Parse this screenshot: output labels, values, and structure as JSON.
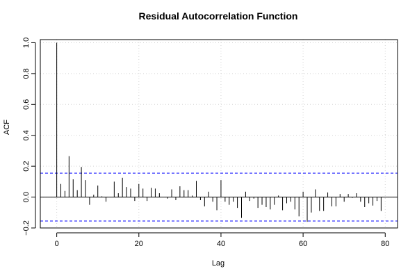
{
  "chart_data": {
    "type": "bar",
    "title": "Residual Autocorrelation Function",
    "xlabel": "Lag",
    "ylabel": "ACF",
    "xlim": [
      -4,
      83
    ],
    "ylim": [
      -0.2,
      1.02
    ],
    "x_ticks": [
      0,
      20,
      40,
      60,
      80
    ],
    "x_tick_labels": [
      "0",
      "20",
      "40",
      "60",
      "80"
    ],
    "y_ticks": [
      -0.2,
      0,
      0.2,
      0.4,
      0.6,
      0.8,
      1.0
    ],
    "y_tick_labels": [
      "−0.2",
      "0.0",
      "0.2",
      "0.4",
      "0.6",
      "0.8",
      "1.0"
    ],
    "grid": true,
    "confidence_bounds": [
      0.155,
      -0.155
    ],
    "colors": {
      "bars": "#000000",
      "bounds": "#0000ff",
      "grid": "#d3d3d3"
    },
    "lags": [
      0,
      1,
      2,
      3,
      4,
      5,
      6,
      7,
      8,
      9,
      10,
      11,
      12,
      13,
      14,
      15,
      16,
      17,
      18,
      19,
      20,
      21,
      22,
      23,
      24,
      25,
      26,
      27,
      28,
      29,
      30,
      31,
      32,
      33,
      34,
      35,
      36,
      37,
      38,
      39,
      40,
      41,
      42,
      43,
      44,
      45,
      46,
      47,
      48,
      49,
      50,
      51,
      52,
      53,
      54,
      55,
      56,
      57,
      58,
      59,
      60,
      61,
      62,
      63,
      64,
      65,
      66,
      67,
      68,
      69,
      70,
      71,
      72,
      73,
      74,
      75,
      76,
      77,
      78,
      79
    ],
    "values": [
      1.0,
      0.085,
      0.04,
      0.265,
      0.115,
      0.045,
      0.195,
      0.11,
      -0.05,
      0.015,
      0.075,
      0.005,
      -0.03,
      0.0,
      0.1,
      0.025,
      0.125,
      0.065,
      0.055,
      -0.025,
      0.085,
      0.055,
      -0.025,
      0.06,
      0.055,
      0.025,
      0.0,
      -0.01,
      0.05,
      -0.02,
      0.07,
      0.045,
      0.045,
      0.01,
      0.105,
      -0.02,
      -0.06,
      0.035,
      -0.03,
      -0.085,
      0.11,
      -0.03,
      -0.05,
      -0.03,
      -0.07,
      -0.135,
      0.035,
      -0.025,
      -0.01,
      -0.07,
      -0.05,
      -0.065,
      -0.08,
      -0.05,
      0.01,
      -0.085,
      -0.04,
      -0.03,
      -0.08,
      -0.125,
      0.035,
      -0.16,
      -0.1,
      0.05,
      -0.09,
      -0.09,
      0.03,
      -0.06,
      -0.06,
      0.02,
      -0.03,
      0.02,
      -0.005,
      0.025,
      -0.03,
      -0.065,
      -0.04,
      -0.055,
      -0.025,
      -0.09
    ]
  }
}
